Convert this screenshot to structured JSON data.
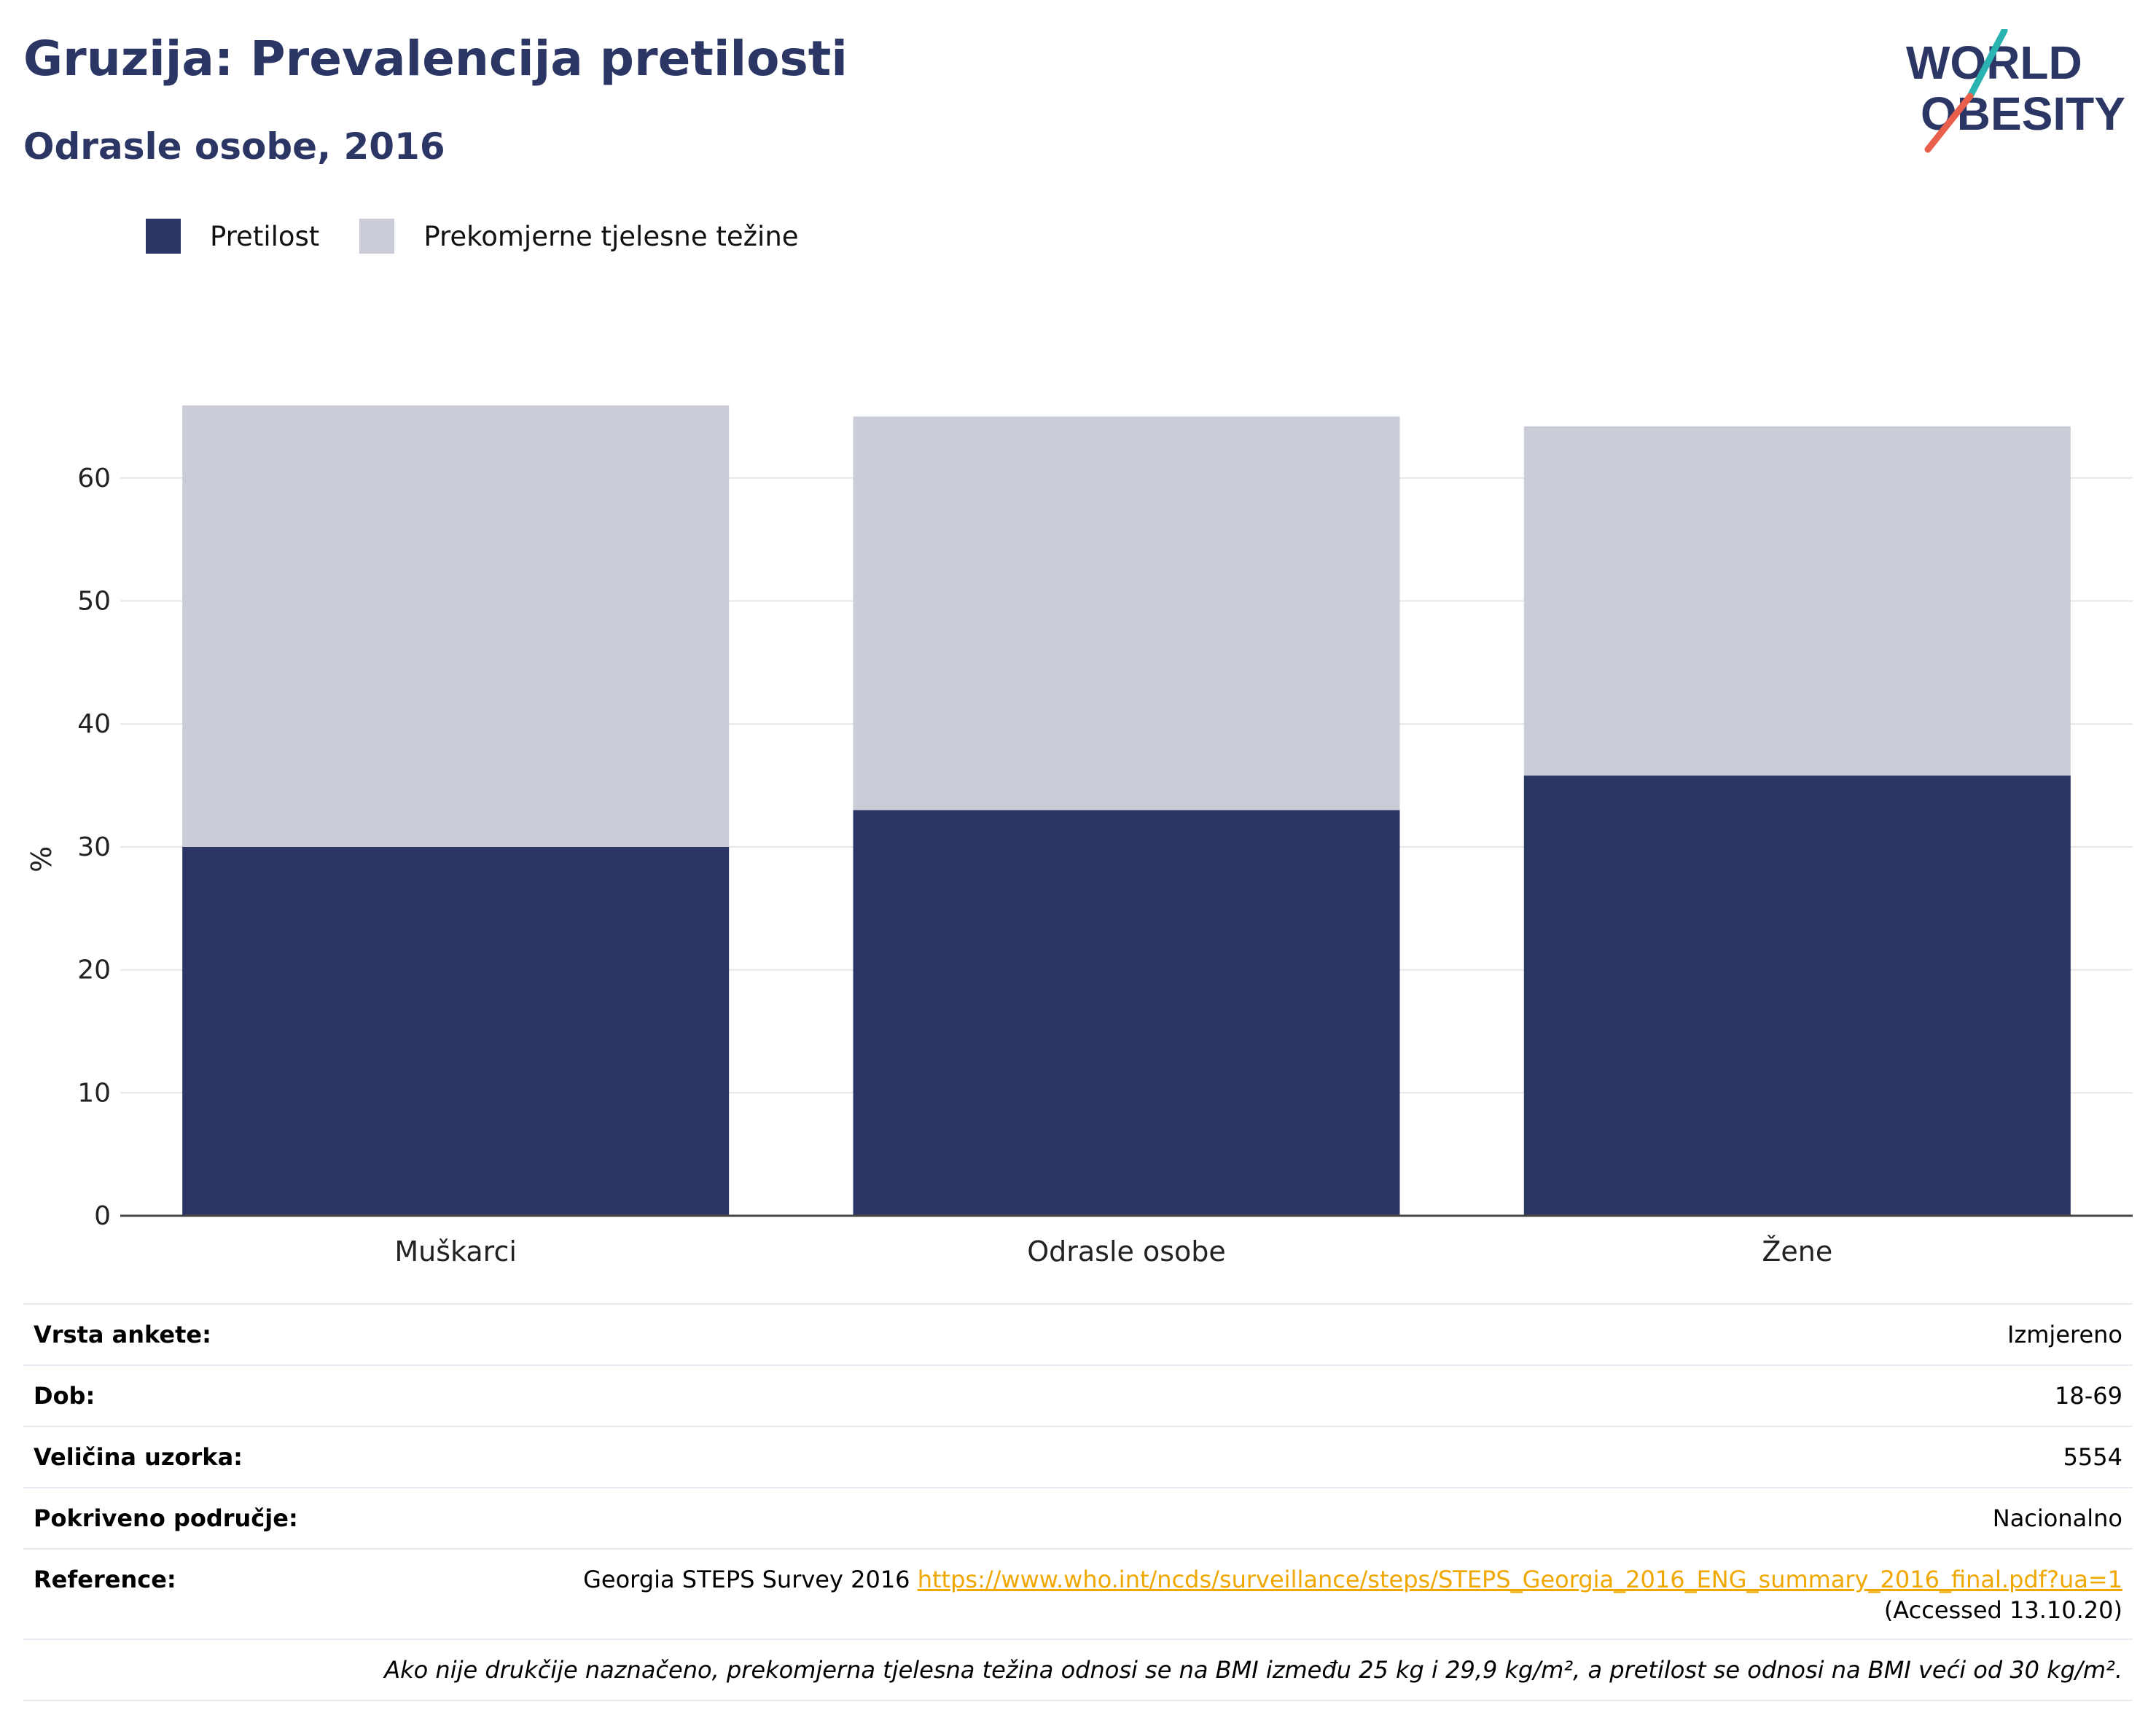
{
  "header": {
    "title": "Gruzija: Prevalencija pretilosti",
    "subtitle": "Odrasle osobe, 2016"
  },
  "logo": {
    "line1": "WORLD",
    "line2": "OBESITY",
    "colors": {
      "text": "#2b3664",
      "slash_top": "#2bb3b1",
      "slash_bottom": "#e8604c"
    }
  },
  "chart_data": {
    "type": "bar",
    "stacked": true,
    "categories": [
      "Muškarci",
      "Odrasle osobe",
      "Žene"
    ],
    "series": [
      {
        "name": "Pretilost",
        "color": "#2b3664",
        "values": [
          30.0,
          33.0,
          35.8
        ]
      },
      {
        "name": "Prekomjerne tjelesne težine",
        "color": "#cacdd8",
        "values": [
          35.9,
          32.0,
          28.4
        ]
      }
    ],
    "ylabel": "%",
    "ylim": [
      0,
      70
    ],
    "yticks": [
      0,
      10,
      20,
      30,
      40,
      50,
      60
    ],
    "grid": true,
    "legend_position": "top-left"
  },
  "info": {
    "rows": [
      {
        "label": "Vrsta ankete:",
        "value": "Izmjereno"
      },
      {
        "label": "Dob:",
        "value": "18-69"
      },
      {
        "label": "Veličina uzorka:",
        "value": "5554"
      },
      {
        "label": "Pokriveno područje:",
        "value": "Nacionalno"
      }
    ],
    "reference": {
      "label": "Reference:",
      "text": "Georgia STEPS Survey 2016",
      "link": "https://www.who.int/ncds/surveillance/steps/STEPS_Georgia_2016_ENG_summary_2016_final.pdf?ua=1",
      "accessed": "(Accessed 13.10.20)"
    },
    "note": "Ako nije drukčije naznačeno, prekomjerna tjelesna težina odnosi se na BMI između 25 kg i 29,9 kg/m², a pretilost se odnosi na BMI veći od 30 kg/m²."
  }
}
